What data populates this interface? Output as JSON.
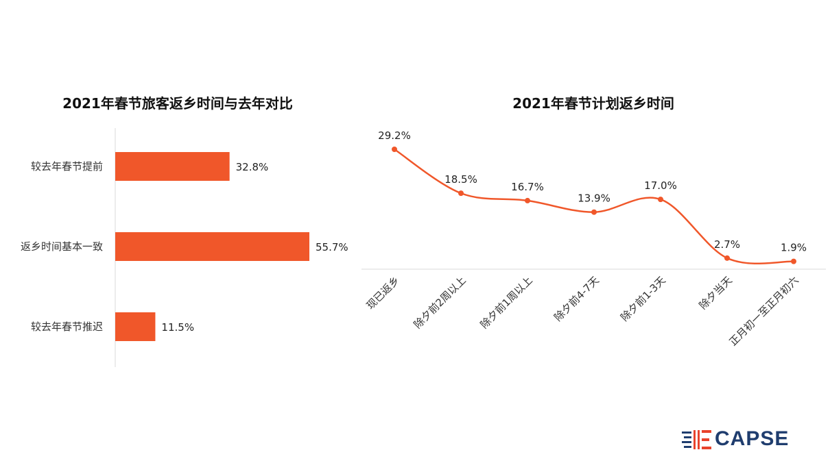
{
  "colors": {
    "accent": "#f0572a",
    "axis": "#d9d9d9",
    "logo_blue": "#1f3d6e",
    "logo_red": "#e8432c"
  },
  "logo": {
    "text": "CAPSE"
  },
  "chart_data": [
    {
      "type": "bar",
      "orientation": "horizontal",
      "title": "2021年春节旅客返乡时间与去年对比",
      "categories": [
        "较去年春节提前",
        "返乡时间基本一致",
        "较去年春节推迟"
      ],
      "values": [
        32.8,
        55.7,
        11.5
      ],
      "value_labels": [
        "32.8%",
        "55.7%",
        "11.5%"
      ],
      "xlim": [
        0,
        60
      ],
      "grid": false,
      "legend": "none"
    },
    {
      "type": "line",
      "smooth": true,
      "title": "2021年春节计划返乡时间",
      "categories": [
        "现已返乡",
        "除夕前2周以上",
        "除夕前1周以上",
        "除夕前4-7天",
        "除夕前1-3天",
        "除夕当天",
        "正月初一至正月初六"
      ],
      "values": [
        29.2,
        18.5,
        16.7,
        13.9,
        17.0,
        2.7,
        1.9
      ],
      "value_labels": [
        "29.2%",
        "18.5%",
        "16.7%",
        "13.9%",
        "17.0%",
        "2.7%",
        "1.9%"
      ],
      "ylim": [
        0,
        30
      ],
      "grid": false,
      "legend": "none"
    }
  ]
}
